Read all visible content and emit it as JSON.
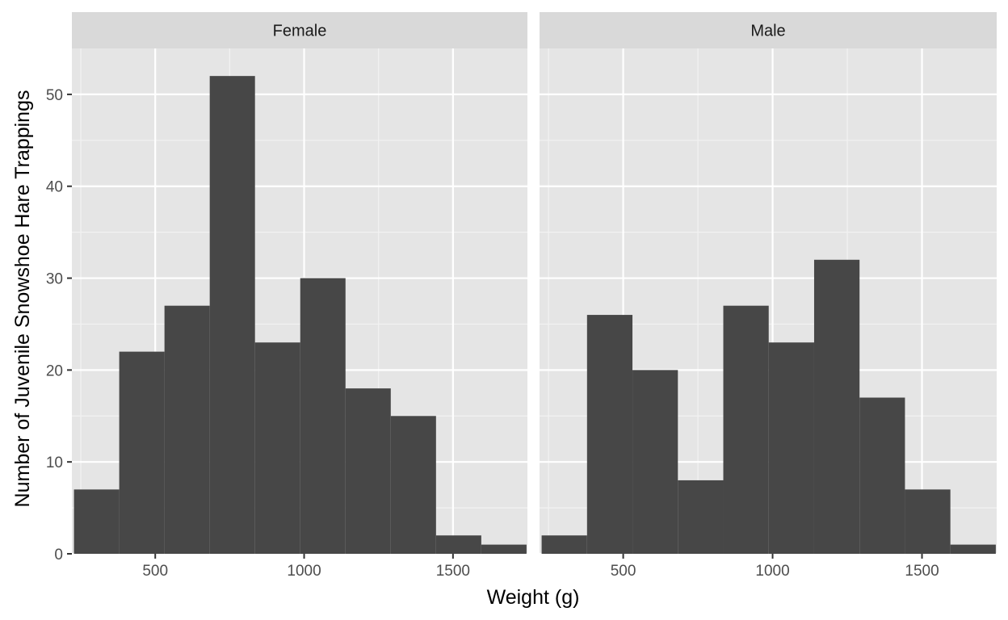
{
  "chart_data": {
    "type": "bar",
    "subtype": "faceted-histogram",
    "xlabel": "Weight (g)",
    "ylabel": "Number of Juvenile Snowshoe Hare Trappings",
    "xlim": [
      220,
      1750
    ],
    "ylim": [
      0,
      55
    ],
    "x_ticks": [
      500,
      1000,
      1500
    ],
    "y_ticks": [
      0,
      10,
      20,
      30,
      40,
      50
    ],
    "grid": true,
    "bin_width": 152,
    "bin_edges": [
      227,
      379,
      531,
      683,
      835,
      987,
      1139,
      1291,
      1443,
      1595,
      1747
    ],
    "bar_color": "#474747",
    "panel_background": "#e5e5e5",
    "strip_background": "#d9d9d9",
    "facets": [
      {
        "label": "Female",
        "counts": [
          7,
          22,
          27,
          52,
          23,
          30,
          18,
          15,
          2,
          1
        ]
      },
      {
        "label": "Male",
        "counts": [
          2,
          26,
          20,
          8,
          27,
          23,
          32,
          17,
          7,
          1
        ]
      }
    ]
  }
}
